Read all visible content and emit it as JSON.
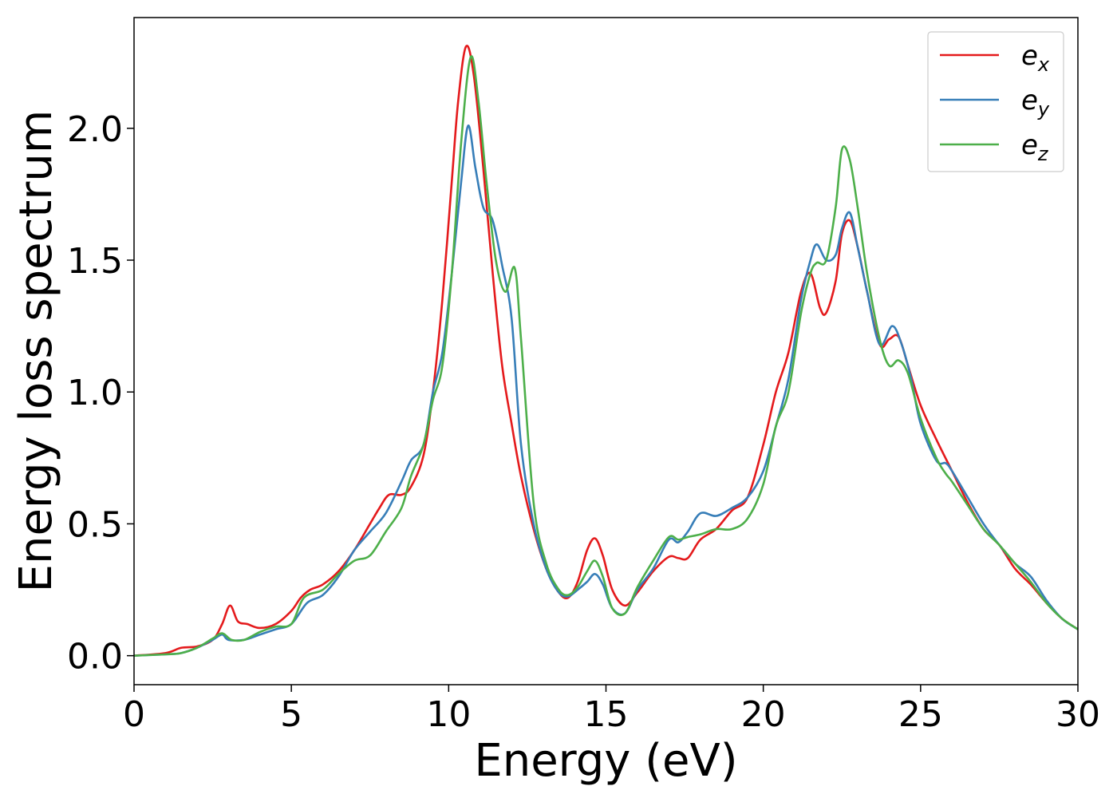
{
  "chart_data": {
    "type": "line",
    "title": "",
    "xlabel": "Energy (eV)",
    "ylabel": "Energy loss spectrum",
    "xlim": [
      0,
      30
    ],
    "ylim": [
      -0.11,
      2.42
    ],
    "xticks": [
      0,
      5,
      10,
      15,
      20,
      25,
      30
    ],
    "xtick_labels": [
      "0",
      "5",
      "10",
      "15",
      "20",
      "25",
      "30"
    ],
    "yticks": [
      0.0,
      0.5,
      1.0,
      1.5,
      2.0
    ],
    "ytick_labels": [
      "0.0",
      "0.5",
      "1.0",
      "1.5",
      "2.0"
    ],
    "grid": false,
    "legend_position": "top-right",
    "series": [
      {
        "name": "e",
        "sub": "x",
        "color": "#e41a1c",
        "points": [
          [
            0,
            0
          ],
          [
            1,
            0.01
          ],
          [
            1.5,
            0.03
          ],
          [
            2,
            0.035
          ],
          [
            2.5,
            0.06
          ],
          [
            2.8,
            0.12
          ],
          [
            3.05,
            0.19
          ],
          [
            3.3,
            0.13
          ],
          [
            3.6,
            0.12
          ],
          [
            4,
            0.105
          ],
          [
            4.5,
            0.12
          ],
          [
            5,
            0.17
          ],
          [
            5.3,
            0.22
          ],
          [
            5.6,
            0.25
          ],
          [
            6,
            0.27
          ],
          [
            6.5,
            0.32
          ],
          [
            7,
            0.4
          ],
          [
            7.5,
            0.5
          ],
          [
            7.8,
            0.56
          ],
          [
            8.1,
            0.61
          ],
          [
            8.5,
            0.61
          ],
          [
            8.8,
            0.64
          ],
          [
            9.2,
            0.76
          ],
          [
            9.5,
            1.0
          ],
          [
            9.8,
            1.35
          ],
          [
            10.1,
            1.8
          ],
          [
            10.3,
            2.1
          ],
          [
            10.55,
            2.31
          ],
          [
            10.8,
            2.2
          ],
          [
            11.1,
            1.85
          ],
          [
            11.4,
            1.45
          ],
          [
            11.7,
            1.1
          ],
          [
            12.0,
            0.88
          ],
          [
            12.3,
            0.68
          ],
          [
            12.7,
            0.48
          ],
          [
            13.1,
            0.33
          ],
          [
            13.5,
            0.24
          ],
          [
            13.8,
            0.22
          ],
          [
            14.1,
            0.28
          ],
          [
            14.4,
            0.4
          ],
          [
            14.65,
            0.445
          ],
          [
            14.9,
            0.38
          ],
          [
            15.2,
            0.25
          ],
          [
            15.6,
            0.19
          ],
          [
            16,
            0.24
          ],
          [
            16.5,
            0.32
          ],
          [
            17,
            0.375
          ],
          [
            17.3,
            0.37
          ],
          [
            17.6,
            0.37
          ],
          [
            18,
            0.44
          ],
          [
            18.5,
            0.48
          ],
          [
            19,
            0.55
          ],
          [
            19.5,
            0.6
          ],
          [
            20,
            0.8
          ],
          [
            20.4,
            1.0
          ],
          [
            20.8,
            1.15
          ],
          [
            21.2,
            1.38
          ],
          [
            21.5,
            1.45
          ],
          [
            21.8,
            1.32
          ],
          [
            22,
            1.3
          ],
          [
            22.3,
            1.42
          ],
          [
            22.5,
            1.6
          ],
          [
            22.75,
            1.65
          ],
          [
            23,
            1.55
          ],
          [
            23.3,
            1.38
          ],
          [
            23.7,
            1.18
          ],
          [
            24,
            1.2
          ],
          [
            24.3,
            1.21
          ],
          [
            24.6,
            1.1
          ],
          [
            25,
            0.95
          ],
          [
            25.5,
            0.82
          ],
          [
            26,
            0.7
          ],
          [
            26.5,
            0.58
          ],
          [
            27,
            0.48
          ],
          [
            27.5,
            0.42
          ],
          [
            28,
            0.33
          ],
          [
            28.5,
            0.27
          ],
          [
            29,
            0.2
          ],
          [
            29.5,
            0.14
          ],
          [
            30,
            0.1
          ]
        ]
      },
      {
        "name": "e",
        "sub": "y",
        "color": "#377eb8",
        "points": [
          [
            0,
            0
          ],
          [
            1,
            0.005
          ],
          [
            1.5,
            0.01
          ],
          [
            2,
            0.03
          ],
          [
            2.5,
            0.06
          ],
          [
            2.8,
            0.08
          ],
          [
            3,
            0.06
          ],
          [
            3.5,
            0.06
          ],
          [
            4,
            0.08
          ],
          [
            4.5,
            0.1
          ],
          [
            5,
            0.12
          ],
          [
            5.5,
            0.2
          ],
          [
            6,
            0.23
          ],
          [
            6.5,
            0.3
          ],
          [
            7,
            0.4
          ],
          [
            7.5,
            0.47
          ],
          [
            8,
            0.54
          ],
          [
            8.5,
            0.66
          ],
          [
            8.8,
            0.74
          ],
          [
            9.2,
            0.8
          ],
          [
            9.5,
            1.0
          ],
          [
            9.8,
            1.15
          ],
          [
            10.1,
            1.45
          ],
          [
            10.4,
            1.8
          ],
          [
            10.62,
            2.01
          ],
          [
            10.85,
            1.85
          ],
          [
            11.1,
            1.7
          ],
          [
            11.4,
            1.65
          ],
          [
            11.7,
            1.48
          ],
          [
            12.0,
            1.28
          ],
          [
            12.3,
            0.8
          ],
          [
            12.7,
            0.5
          ],
          [
            13.1,
            0.33
          ],
          [
            13.5,
            0.24
          ],
          [
            13.8,
            0.225
          ],
          [
            14.1,
            0.25
          ],
          [
            14.4,
            0.28
          ],
          [
            14.65,
            0.31
          ],
          [
            14.9,
            0.27
          ],
          [
            15.2,
            0.18
          ],
          [
            15.6,
            0.16
          ],
          [
            16,
            0.25
          ],
          [
            16.5,
            0.33
          ],
          [
            17,
            0.44
          ],
          [
            17.3,
            0.43
          ],
          [
            17.6,
            0.47
          ],
          [
            18,
            0.54
          ],
          [
            18.5,
            0.53
          ],
          [
            19,
            0.56
          ],
          [
            19.5,
            0.6
          ],
          [
            20,
            0.7
          ],
          [
            20.4,
            0.87
          ],
          [
            20.8,
            1.05
          ],
          [
            21.2,
            1.35
          ],
          [
            21.5,
            1.5
          ],
          [
            21.7,
            1.56
          ],
          [
            22,
            1.5
          ],
          [
            22.3,
            1.52
          ],
          [
            22.5,
            1.62
          ],
          [
            22.75,
            1.68
          ],
          [
            23,
            1.55
          ],
          [
            23.3,
            1.38
          ],
          [
            23.7,
            1.18
          ],
          [
            24.1,
            1.25
          ],
          [
            24.4,
            1.18
          ],
          [
            24.7,
            1.05
          ],
          [
            25,
            0.88
          ],
          [
            25.5,
            0.74
          ],
          [
            25.8,
            0.73
          ],
          [
            26,
            0.7
          ],
          [
            26.5,
            0.6
          ],
          [
            27,
            0.5
          ],
          [
            27.5,
            0.42
          ],
          [
            28,
            0.35
          ],
          [
            28.5,
            0.3
          ],
          [
            29,
            0.21
          ],
          [
            29.5,
            0.14
          ],
          [
            30,
            0.1
          ]
        ]
      },
      {
        "name": "e",
        "sub": "z",
        "color": "#4daf4a",
        "points": [
          [
            0,
            0
          ],
          [
            1,
            0.005
          ],
          [
            1.5,
            0.01
          ],
          [
            2,
            0.03
          ],
          [
            2.5,
            0.065
          ],
          [
            2.8,
            0.085
          ],
          [
            3.1,
            0.06
          ],
          [
            3.5,
            0.06
          ],
          [
            4,
            0.09
          ],
          [
            4.5,
            0.11
          ],
          [
            5,
            0.12
          ],
          [
            5.4,
            0.22
          ],
          [
            6,
            0.25
          ],
          [
            6.5,
            0.31
          ],
          [
            7,
            0.36
          ],
          [
            7.5,
            0.38
          ],
          [
            8,
            0.47
          ],
          [
            8.5,
            0.56
          ],
          [
            8.8,
            0.68
          ],
          [
            9.2,
            0.8
          ],
          [
            9.5,
            0.97
          ],
          [
            9.8,
            1.1
          ],
          [
            10.1,
            1.45
          ],
          [
            10.4,
            1.95
          ],
          [
            10.7,
            2.27
          ],
          [
            10.95,
            2.1
          ],
          [
            11.2,
            1.8
          ],
          [
            11.5,
            1.5
          ],
          [
            11.8,
            1.38
          ],
          [
            12.1,
            1.47
          ],
          [
            12.3,
            1.2
          ],
          [
            12.7,
            0.58
          ],
          [
            13.1,
            0.35
          ],
          [
            13.5,
            0.25
          ],
          [
            13.8,
            0.23
          ],
          [
            14.1,
            0.26
          ],
          [
            14.4,
            0.32
          ],
          [
            14.65,
            0.36
          ],
          [
            14.9,
            0.3
          ],
          [
            15.2,
            0.18
          ],
          [
            15.6,
            0.16
          ],
          [
            16,
            0.26
          ],
          [
            16.5,
            0.36
          ],
          [
            17,
            0.45
          ],
          [
            17.3,
            0.44
          ],
          [
            17.6,
            0.45
          ],
          [
            18,
            0.46
          ],
          [
            18.5,
            0.48
          ],
          [
            19,
            0.48
          ],
          [
            19.5,
            0.52
          ],
          [
            20,
            0.65
          ],
          [
            20.4,
            0.87
          ],
          [
            20.8,
            1.0
          ],
          [
            21.2,
            1.3
          ],
          [
            21.5,
            1.45
          ],
          [
            21.7,
            1.49
          ],
          [
            22,
            1.5
          ],
          [
            22.3,
            1.7
          ],
          [
            22.5,
            1.92
          ],
          [
            22.75,
            1.88
          ],
          [
            23,
            1.7
          ],
          [
            23.3,
            1.45
          ],
          [
            23.7,
            1.2
          ],
          [
            24,
            1.1
          ],
          [
            24.3,
            1.12
          ],
          [
            24.6,
            1.07
          ],
          [
            25,
            0.9
          ],
          [
            25.5,
            0.75
          ],
          [
            25.8,
            0.69
          ],
          [
            26,
            0.66
          ],
          [
            26.5,
            0.57
          ],
          [
            27,
            0.48
          ],
          [
            27.5,
            0.42
          ],
          [
            28,
            0.35
          ],
          [
            28.5,
            0.28
          ],
          [
            29,
            0.2
          ],
          [
            29.5,
            0.14
          ],
          [
            30,
            0.1
          ]
        ]
      }
    ]
  }
}
